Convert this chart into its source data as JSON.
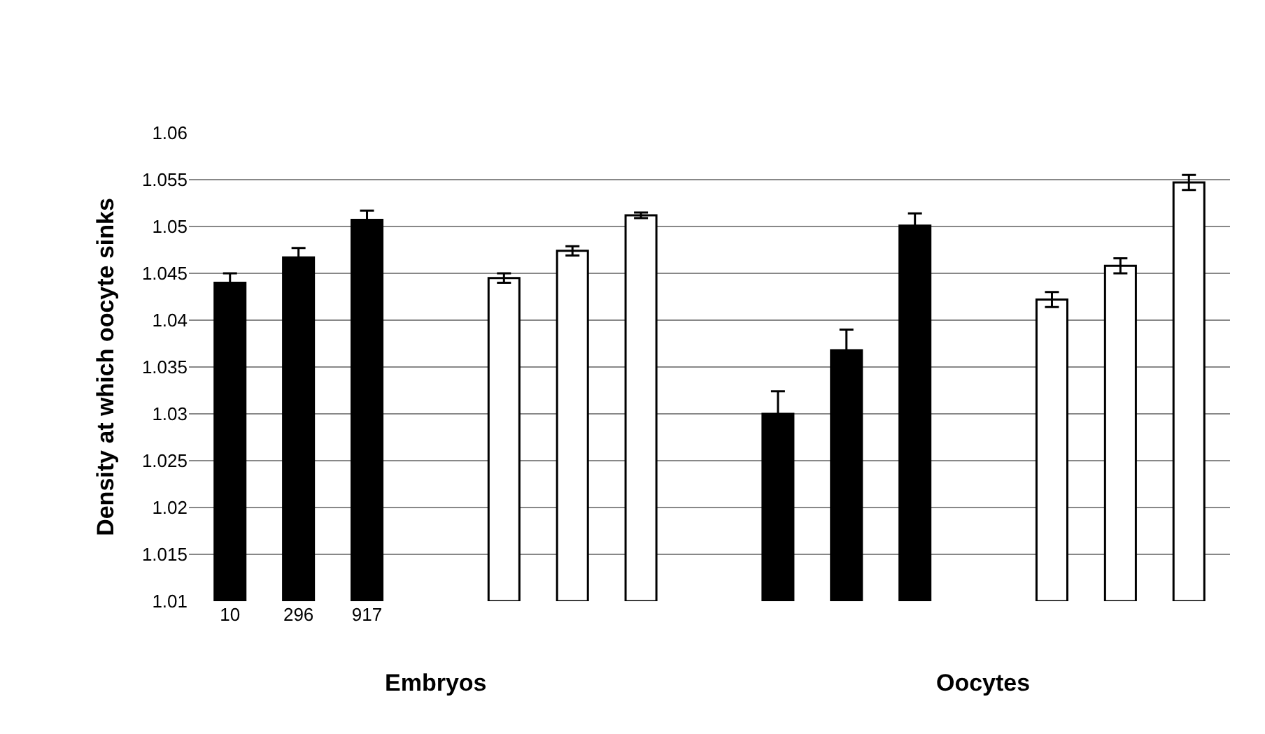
{
  "chart_data": {
    "type": "bar",
    "ylabel": "Density at which oocyte sinks",
    "categories": [
      "10",
      "296",
      "917",
      null,
      null,
      null,
      null,
      null,
      null,
      null,
      null,
      null,
      null,
      null,
      null
    ],
    "values": [
      1.044,
      1.0467,
      1.0507,
      null,
      1.0445,
      1.0474,
      1.0512,
      null,
      1.03,
      1.0368,
      1.0501,
      null,
      1.0422,
      1.0458,
      1.0547
    ],
    "errors": [
      0.001,
      0.001,
      0.001,
      null,
      0.0005,
      0.0005,
      0.0003,
      null,
      0.0024,
      0.0022,
      0.0013,
      null,
      0.0008,
      0.0008,
      0.0008
    ],
    "colors": [
      "#000000",
      "#000000",
      "#000000",
      "#ffffff",
      "#ffffff",
      "#ffffff",
      "#ffffff",
      "#ffffff",
      "#000000",
      "#000000",
      "#000000",
      "#ffffff",
      "#ffffff",
      "#ffffff",
      "#ffffff"
    ],
    "ylim": [
      1.01,
      1.06
    ],
    "yticks": [
      1.01,
      1.015,
      1.02,
      1.025,
      1.03,
      1.035,
      1.04,
      1.045,
      1.05,
      1.055,
      1.06
    ],
    "grid": "y",
    "annotations": [
      "Embryos",
      "Oocytes"
    ]
  }
}
